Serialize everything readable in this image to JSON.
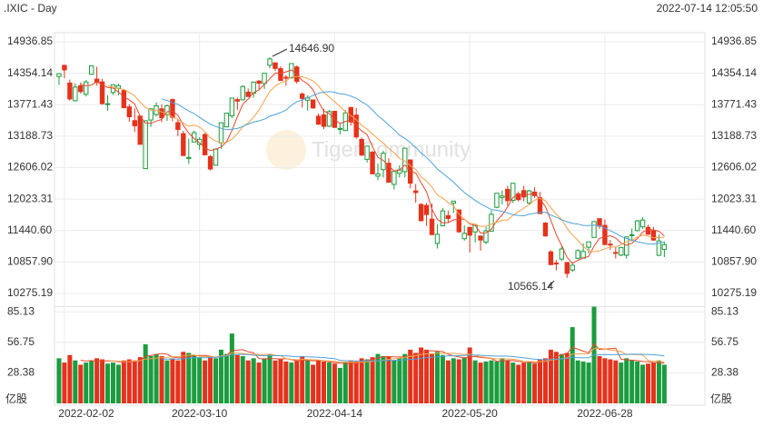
{
  "chart_data": {
    "type": "candlestick",
    "title": ".IXIC - Day",
    "timestamp": "2022-07-14 12:05:50",
    "watermark": "TigerCommunity",
    "volume_unit": "亿股",
    "high_label": "14646.90",
    "low_label": "10565.14",
    "up_color": "#1c9c3e",
    "down_color": "#e5321c",
    "grid": true,
    "categories": [
      null,
      "2022-02-02",
      null,
      null,
      null,
      null,
      null,
      null,
      null,
      null,
      null,
      null,
      null,
      null,
      null,
      null,
      null,
      null,
      null,
      null,
      null,
      null,
      null,
      null,
      null,
      null,
      "2022-03-10",
      null,
      null,
      null,
      null,
      null,
      null,
      null,
      null,
      null,
      null,
      null,
      null,
      null,
      null,
      null,
      null,
      null,
      null,
      null,
      null,
      null,
      null,
      null,
      null,
      "2022-04-14",
      null,
      null,
      null,
      null,
      null,
      null,
      null,
      null,
      null,
      null,
      null,
      null,
      null,
      null,
      null,
      null,
      null,
      null,
      null,
      null,
      null,
      null,
      null,
      null,
      "2022-05-20",
      null,
      null,
      null,
      null,
      null,
      null,
      null,
      null,
      null,
      null,
      null,
      null,
      null,
      null,
      null,
      null,
      null,
      null,
      null,
      null,
      null,
      null,
      null,
      null,
      "2022-06-28",
      null,
      null,
      null,
      null,
      null,
      null,
      null,
      null,
      null,
      null,
      null
    ],
    "open": [
      14294,
      14500,
      14173,
      13845,
      14121,
      13964,
      14336,
      14245,
      14194,
      13782,
      13997,
      14076,
      14034,
      13731,
      13476,
      13560,
      12588,
      13488,
      13589,
      13695,
      13589,
      13867,
      13439,
      13235,
      12776,
      13081,
      13036,
      13218,
      12811,
      12650,
      13065,
      13361,
      13564,
      13866,
      13861,
      14004,
      13983,
      14208,
      14165,
      14502,
      14546,
      14439,
      14280,
      14267,
      14470,
      13970,
      13854,
      13860,
      13558,
      13583,
      13373,
      13649,
      13319,
      13294,
      13721,
      13579,
      13129,
      12760,
      12894,
      12448,
      12568,
      12686,
      12296,
      12502,
      12532,
      12749,
      12175,
      11924,
      11906,
      11652,
      11202,
      11528,
      11717,
      11947,
      11822,
      11290,
      11500,
      11416,
      11339,
      11227,
      11430,
      11871,
      12052,
      12204,
      12000,
      12121,
      12181,
      11952,
      12153,
      12047,
      11579,
      11046,
      10838,
      10912,
      10849,
      10710,
      10928,
      10929,
      11132,
      11313,
      11661,
      11536,
      11188,
      11035,
      10985,
      10983,
      11346,
      11440,
      11508,
      11500,
      11434,
      10982,
      11090
    ],
    "high": [
      14354,
      14510,
      14237,
      14168,
      14185,
      14227,
      14497,
      14474,
      14253,
      13947,
      14139,
      14158,
      14058,
      13782,
      13703,
      13581,
      13482,
      13695,
      13814,
      13779,
      13772,
      13887,
      13489,
      13286,
      13144,
      13288,
      13172,
      13249,
      12841,
      12955,
      13440,
      13621,
      13895,
      13904,
      14130,
      14071,
      14194,
      14229,
      14356,
      14646.9,
      14560,
      14485,
      14315,
      14534,
      14497,
      14000,
      13946,
      13860,
      13610,
      13695,
      13673,
      13655,
      13420,
      13672,
      13721,
      13710,
      13163,
      13006,
      12912,
      12682,
      12918,
      12780,
      12540,
      12647,
      12975,
      12749,
      12304,
      11945,
      11950,
      11943,
      11555,
      11856,
      11808,
      11986,
      11832,
      11534,
      11504,
      11541,
      11340,
      11507,
      11811,
      12132,
      12183,
      12269,
      12320,
      12165,
      12271,
      12194,
      12242,
      12154,
      11599,
      11076,
      10894,
      11160,
      10856,
      10856,
      11095,
      11200,
      11235,
      11608,
      11663,
      11644,
      11266,
      11145,
      11130,
      11322,
      11477,
      11635,
      11689,
      11549,
      11506,
      11369,
      11240
    ],
    "low": [
      14136,
      14262,
      13847,
      13832,
      13976,
      13925,
      14327,
      14124,
      13770,
      13661,
      13952,
      13942,
      13703,
      13456,
      13268,
      13034,
      12587,
      13361,
      13550,
      13448,
      13472,
      13464,
      13188,
      12830,
      12673,
      13081,
      12936,
      12843,
      12555,
      12640,
      12955,
      13352,
      13522,
      13672,
      13860,
      13922,
      13900,
      14036,
      14065,
      14444,
      14394,
      14218,
      14125,
      14264,
      14161,
      13719,
      13660,
      13698,
      13395,
      13320,
      13356,
      13347,
      13222,
      13283,
      13385,
      13140,
      12820,
      12701,
      12490,
      12375,
      12423,
      12332,
      12202,
      12423,
      12428,
      12224,
      11958,
      11607,
      11525,
      11361,
      11108,
      11528,
      11577,
      11766,
      11397,
      11255,
      11036,
      11217,
      11068,
      11187,
      11419,
      11854,
      11926,
      11902,
      11950,
      11983,
      11982,
      11928,
      12048,
      11753,
      11326,
      10809,
      10703,
      10877,
      10565.14,
      10677,
      10908,
      10926,
      11017,
      11313,
      11474,
      11170,
      11082,
      10923,
      10965,
      10919,
      11242,
      11425,
      11469,
      11358,
      11250,
      10969,
      10948
    ],
    "close": [
      14346,
      14417,
      13878,
      14098,
      14015,
      14194,
      14490,
      14186,
      13791,
      13790,
      14139,
      14124,
      13717,
      13548,
      13381,
      13037,
      13474,
      13695,
      13751,
      13532,
      13752,
      13537,
      13313,
      12830,
      12795,
      13255,
      13130,
      12843,
      12581,
      12948,
      13437,
      13615,
      13894,
      13838,
      14109,
      13923,
      14191,
      14169,
      14354,
      14620,
      14443,
      14221,
      14262,
      14533,
      14204,
      13888,
      13897,
      13711,
      13411,
      13371,
      13644,
      13351,
      13332,
      13619,
      13453,
      13175,
      12839,
      13005,
      12491,
      12489,
      12872,
      12335,
      12536,
      12564,
      12965,
      12318,
      12145,
      11624,
      11738,
      11365,
      11371,
      11805,
      11663,
      11985,
      11418,
      11389,
      11355,
      11535,
      11265,
      11435,
      11741,
      12131,
      12081,
      11994,
      12317,
      12013,
      12062,
      12175,
      12087,
      11754,
      11341,
      10809,
      10828,
      11099,
      10647,
      10798,
      11069,
      11053,
      11232,
      11608,
      11524,
      11182,
      11178,
      11029,
      11128,
      11322,
      11362,
      11621,
      11635,
      11373,
      11265,
      11248,
      11180
    ],
    "volume": [
      42,
      38,
      45,
      40,
      36,
      38,
      40,
      42,
      41,
      37,
      38,
      36,
      40,
      41,
      40,
      43,
      55,
      44,
      46,
      44,
      40,
      42,
      40,
      48,
      47,
      45,
      43,
      40,
      44,
      42,
      50,
      46,
      65,
      45,
      44,
      40,
      42,
      38,
      42,
      46,
      40,
      41,
      39,
      38,
      40,
      44,
      40,
      36,
      40,
      39,
      38,
      37,
      33,
      38,
      40,
      39,
      42,
      41,
      43,
      46,
      44,
      44,
      40,
      42,
      46,
      50,
      47,
      52,
      50,
      46,
      48,
      45,
      40,
      42,
      41,
      43,
      52,
      40,
      38,
      39,
      40,
      39,
      42,
      40,
      38,
      36,
      38,
      39,
      37,
      41,
      42,
      50,
      48,
      46,
      47,
      71,
      40,
      39,
      38,
      90,
      44,
      42,
      41,
      40,
      38,
      42,
      40,
      39,
      36,
      37,
      38,
      40,
      36
    ],
    "ylim": [
      10040,
      15105
    ],
    "yticks": [
      14936.85,
      14354.14,
      13771.43,
      13188.73,
      12606.02,
      12023.31,
      {
        "value": 11440.6,
        "label": "11440.60"
      },
      {
        "value": 10857.9,
        "label": "10857.90"
      },
      10275.19
    ],
    "vol_ylim": [
      0,
      90
    ],
    "vol_yticks": [
      85.13,
      56.75,
      28.38
    ]
  }
}
